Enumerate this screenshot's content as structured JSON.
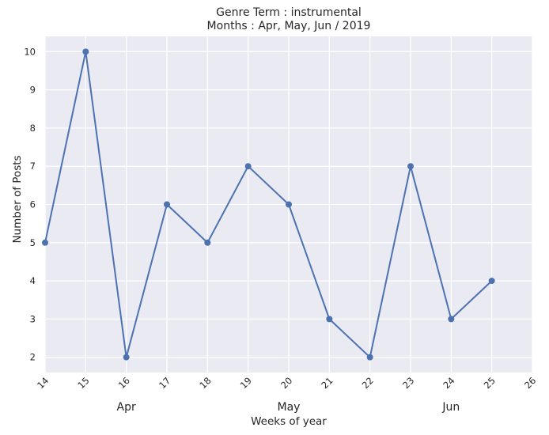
{
  "chart_data": {
    "type": "line",
    "title": "Genre Term : instrumental",
    "subtitle": "Months : Apr, May, Jun / 2019",
    "xlabel": "Weeks of year",
    "ylabel": "Number of Posts",
    "x": [
      14,
      15,
      16,
      17,
      18,
      19,
      20,
      21,
      22,
      23,
      24,
      25
    ],
    "series": [
      {
        "values": [
          5,
          10,
          2,
          6,
          5,
          7,
          6,
          3,
          2,
          7,
          3,
          4
        ]
      }
    ],
    "xlim": [
      14,
      26
    ],
    "ylim": [
      1.6,
      10.4
    ],
    "x_ticks": [
      14,
      15,
      16,
      17,
      18,
      19,
      20,
      21,
      22,
      23,
      24,
      25,
      26
    ],
    "y_ticks": [
      2,
      3,
      4,
      5,
      6,
      7,
      8,
      9,
      10
    ],
    "month_labels": [
      {
        "label": "Apr",
        "x": 16
      },
      {
        "label": "May",
        "x": 20
      },
      {
        "label": "Jun",
        "x": 24
      }
    ],
    "grid": true,
    "legend": "none",
    "colors": {
      "plot_background": "#eaeaf2",
      "grid": "#ffffff",
      "line": "#4c72b0"
    }
  }
}
